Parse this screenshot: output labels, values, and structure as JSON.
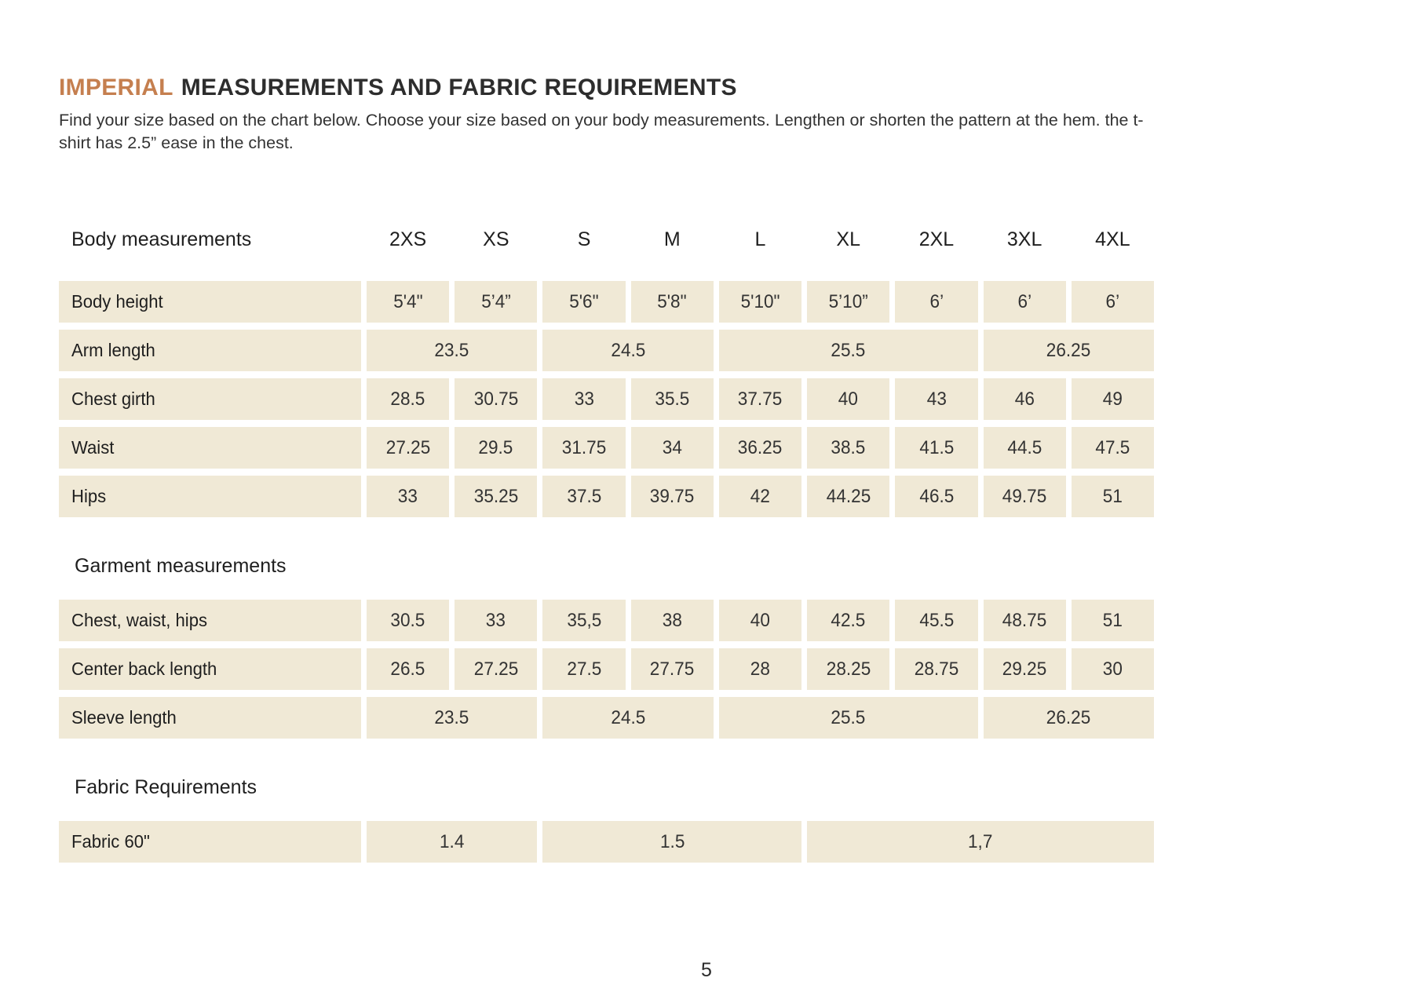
{
  "theme": {
    "accent_color": "#c57f4f",
    "cell_background": "#f0e9d6",
    "text_color": "#2b2b2b"
  },
  "header": {
    "title_highlight": "IMPERIAL",
    "title_rest": "MEASUREMENTS AND FABRIC REQUIREMENTS",
    "description": "Find your size based on the chart below. Choose your size based on your body measurements. Lengthen or shorten the pattern at the hem. the t-shirt has 2.5” ease in the chest."
  },
  "table": {
    "header_label": "Body measurements",
    "size_headers": [
      "2XS",
      "XS",
      "S",
      "M",
      "L",
      "XL",
      "2XL",
      "3XL",
      "4XL"
    ],
    "sections": [
      {
        "heading": "",
        "rows": [
          {
            "label": "Body height",
            "cells": [
              {
                "text": "5'4\"",
                "span": 1
              },
              {
                "text": "5’4”",
                "span": 1
              },
              {
                "text": "5'6\"",
                "span": 1
              },
              {
                "text": "5'8\"",
                "span": 1
              },
              {
                "text": "5'10\"",
                "span": 1
              },
              {
                "text": "5’10”",
                "span": 1
              },
              {
                "text": "6’",
                "span": 1
              },
              {
                "text": "6’",
                "span": 1
              },
              {
                "text": "6’",
                "span": 1
              }
            ]
          },
          {
            "label": "Arm length",
            "cells": [
              {
                "text": "23.5",
                "span": 2
              },
              {
                "text": "24.5",
                "span": 2
              },
              {
                "text": "25.5",
                "span": 3
              },
              {
                "text": "26.25",
                "span": 2
              }
            ]
          },
          {
            "label": "Chest girth",
            "cells": [
              {
                "text": "28.5",
                "span": 1
              },
              {
                "text": "30.75",
                "span": 1
              },
              {
                "text": "33",
                "span": 1
              },
              {
                "text": "35.5",
                "span": 1
              },
              {
                "text": "37.75",
                "span": 1
              },
              {
                "text": "40",
                "span": 1
              },
              {
                "text": "43",
                "span": 1
              },
              {
                "text": "46",
                "span": 1
              },
              {
                "text": "49",
                "span": 1
              }
            ]
          },
          {
            "label": "Waist",
            "cells": [
              {
                "text": "27.25",
                "span": 1
              },
              {
                "text": "29.5",
                "span": 1
              },
              {
                "text": "31.75",
                "span": 1
              },
              {
                "text": "34",
                "span": 1
              },
              {
                "text": "36.25",
                "span": 1
              },
              {
                "text": "38.5",
                "span": 1
              },
              {
                "text": "41.5",
                "span": 1
              },
              {
                "text": "44.5",
                "span": 1
              },
              {
                "text": "47.5",
                "span": 1
              }
            ]
          },
          {
            "label": "Hips",
            "cells": [
              {
                "text": "33",
                "span": 1
              },
              {
                "text": "35.25",
                "span": 1
              },
              {
                "text": "37.5",
                "span": 1
              },
              {
                "text": "39.75",
                "span": 1
              },
              {
                "text": "42",
                "span": 1
              },
              {
                "text": "44.25",
                "span": 1
              },
              {
                "text": "46.5",
                "span": 1
              },
              {
                "text": "49.75",
                "span": 1
              },
              {
                "text": "51",
                "span": 1
              }
            ]
          }
        ]
      },
      {
        "heading": "Garment measurements",
        "rows": [
          {
            "label": "Chest, waist, hips",
            "cells": [
              {
                "text": "30.5",
                "span": 1
              },
              {
                "text": "33",
                "span": 1
              },
              {
                "text": "35,5",
                "span": 1
              },
              {
                "text": "38",
                "span": 1
              },
              {
                "text": "40",
                "span": 1
              },
              {
                "text": "42.5",
                "span": 1
              },
              {
                "text": "45.5",
                "span": 1
              },
              {
                "text": "48.75",
                "span": 1
              },
              {
                "text": "51",
                "span": 1
              }
            ]
          },
          {
            "label": "Center back length",
            "cells": [
              {
                "text": "26.5",
                "span": 1
              },
              {
                "text": "27.25",
                "span": 1
              },
              {
                "text": "27.5",
                "span": 1
              },
              {
                "text": "27.75",
                "span": 1
              },
              {
                "text": "28",
                "span": 1
              },
              {
                "text": "28.25",
                "span": 1
              },
              {
                "text": "28.75",
                "span": 1
              },
              {
                "text": "29.25",
                "span": 1
              },
              {
                "text": "30",
                "span": 1
              }
            ]
          },
          {
            "label": "Sleeve length",
            "cells": [
              {
                "text": "23.5",
                "span": 2
              },
              {
                "text": "24.5",
                "span": 2
              },
              {
                "text": "25.5",
                "span": 3
              },
              {
                "text": "26.25",
                "span": 2
              }
            ]
          }
        ]
      },
      {
        "heading": "Fabric Requirements",
        "rows": [
          {
            "label": "Fabric 60\"",
            "cells": [
              {
                "text": "1.4",
                "span": 2
              },
              {
                "text": "1.5",
                "span": 3
              },
              {
                "text": "1,7",
                "span": 4
              }
            ]
          }
        ]
      }
    ]
  },
  "footer": {
    "page_number": "5"
  }
}
